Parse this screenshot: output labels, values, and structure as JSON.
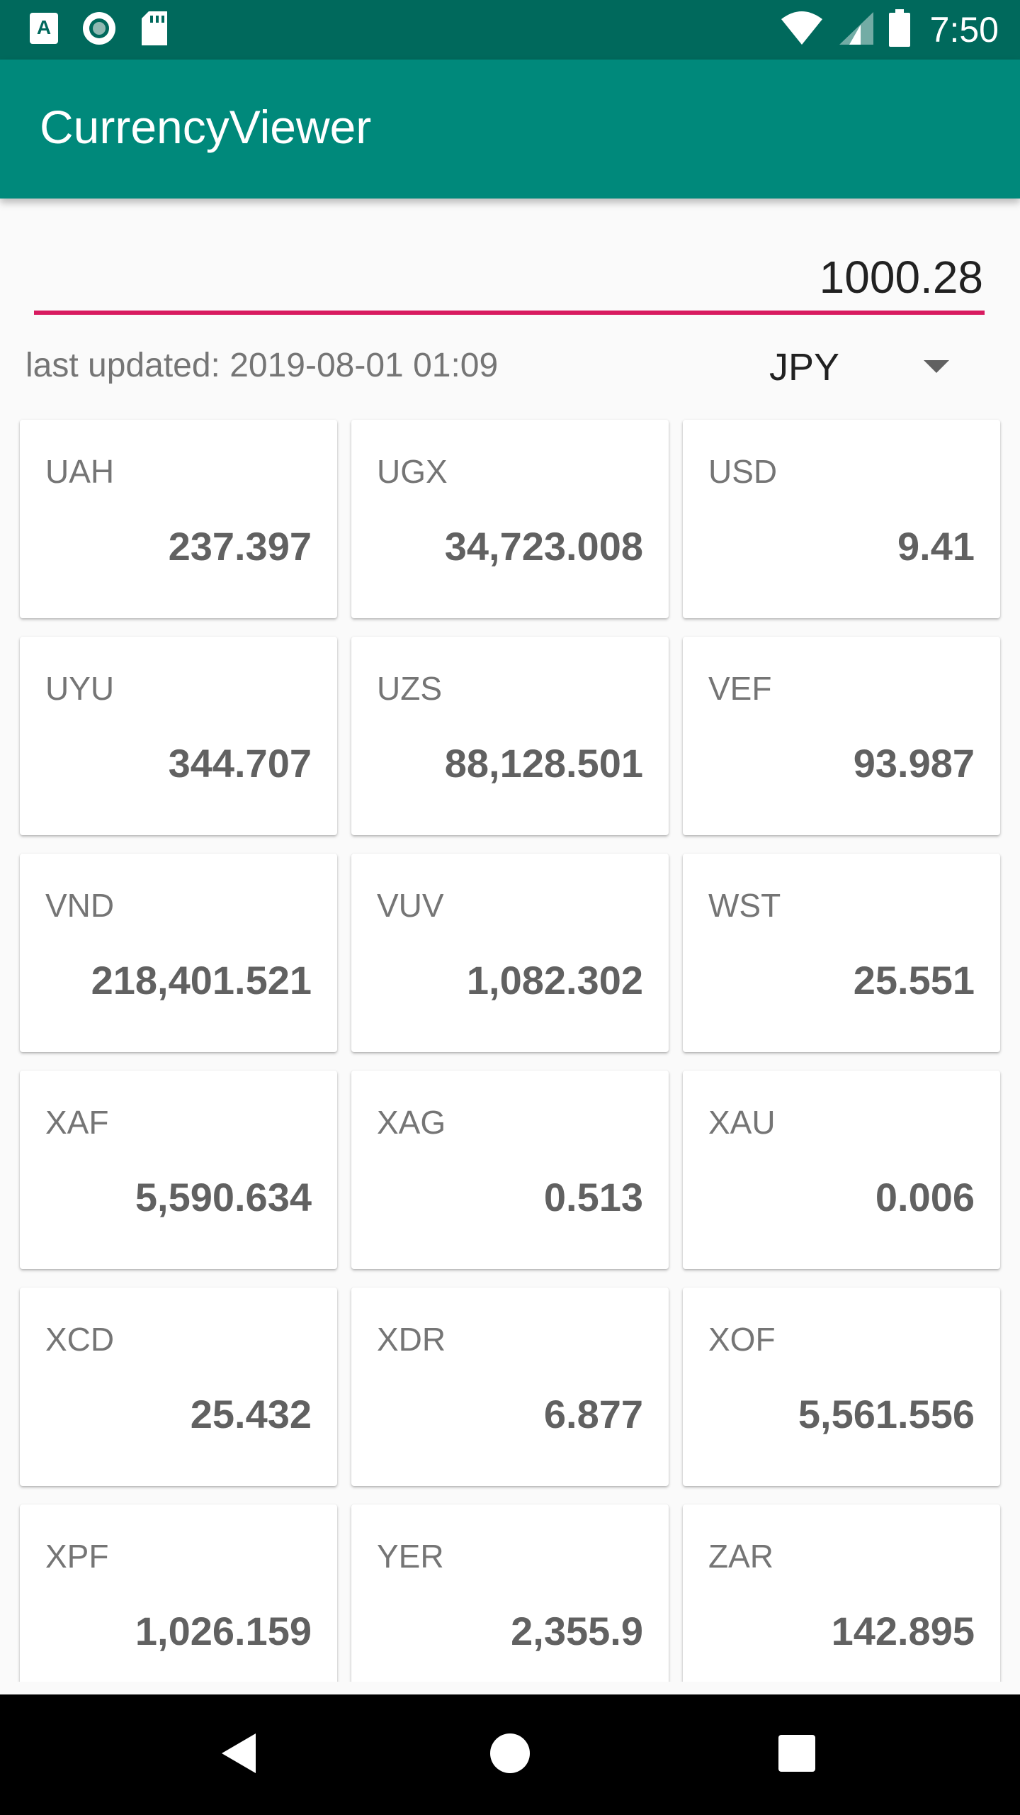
{
  "status_bar": {
    "time": "7:50",
    "icons": [
      "sim-a-icon",
      "record-icon",
      "sd-card-icon",
      "wifi-icon",
      "signal-icon",
      "battery-icon"
    ]
  },
  "app_bar": {
    "title": "CurrencyViewer",
    "color": "#00897b",
    "status_color": "#00695c"
  },
  "converter": {
    "amount": "1000.28",
    "accent_color": "#d81b60",
    "last_updated": "last updated: 2019-08-01 01:09",
    "selected_currency": "JPY"
  },
  "rates": [
    {
      "code": "UAH",
      "value": "237.397"
    },
    {
      "code": "UGX",
      "value": "34,723.008"
    },
    {
      "code": "USD",
      "value": "9.41"
    },
    {
      "code": "UYU",
      "value": "344.707"
    },
    {
      "code": "UZS",
      "value": "88,128.501"
    },
    {
      "code": "VEF",
      "value": "93.987"
    },
    {
      "code": "VND",
      "value": "218,401.521"
    },
    {
      "code": "VUV",
      "value": "1,082.302"
    },
    {
      "code": "WST",
      "value": "25.551"
    },
    {
      "code": "XAF",
      "value": "5,590.634"
    },
    {
      "code": "XAG",
      "value": "0.513"
    },
    {
      "code": "XAU",
      "value": "0.006"
    },
    {
      "code": "XCD",
      "value": "25.432"
    },
    {
      "code": "XDR",
      "value": "6.877"
    },
    {
      "code": "XOF",
      "value": "5,561.556"
    },
    {
      "code": "XPF",
      "value": "1,026.159"
    },
    {
      "code": "YER",
      "value": "2,355.9"
    },
    {
      "code": "ZAR",
      "value": "142.895"
    }
  ],
  "nav_bar": {
    "icons": [
      "back-icon",
      "home-icon",
      "recents-icon"
    ]
  }
}
